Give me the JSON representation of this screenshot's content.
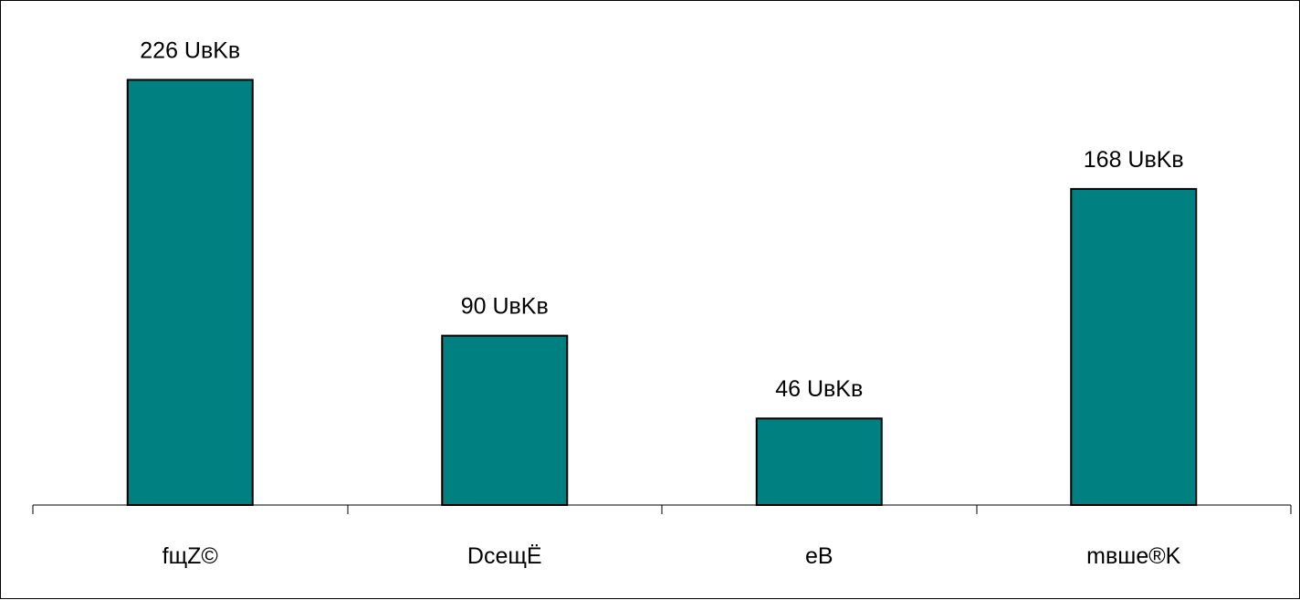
{
  "chart_data": {
    "type": "bar",
    "categories": [
      "fщZ©",
      "DceщË",
      "eB",
      "mвшe®K"
    ],
    "values": [
      226,
      90,
      46,
      168
    ],
    "data_labels": [
      "226 UвKв",
      "90 UвKв",
      "46 UвKв",
      "168 UвKв"
    ],
    "title": "",
    "xlabel": "",
    "ylabel": "",
    "ylim": [
      0,
      260
    ],
    "grid": false,
    "legend": "none",
    "bar_color": "#008080",
    "bar_border_color": "#000000",
    "axis_color": "#000000"
  }
}
